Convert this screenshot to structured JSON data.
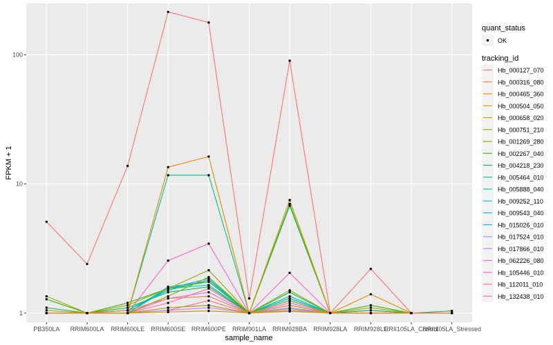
{
  "chart_data": {
    "type": "line",
    "xlabel": "sample_name",
    "ylabel": "FPKM + 1",
    "y_scale": "log10",
    "ylim": [
      0.85,
      250
    ],
    "yticks": [
      1,
      10,
      100
    ],
    "ytick_labels": [
      "1",
      "10",
      "100"
    ],
    "categories": [
      "PB350LA",
      "RRIM600LA",
      "RRIM600LE",
      "RRIM600SE",
      "RRIM600PE",
      "RRIM901LA",
      "RRIM928BA",
      "RRIM928LA",
      "RRIM928LE",
      "RRII105LA_Control",
      "RRII105LA_Stressed"
    ],
    "grid": true,
    "panel_background": "#EBEBEB",
    "point_color": "#000000",
    "legend_position": "right",
    "legends": [
      {
        "title": "quant_status",
        "entries": [
          "OK"
        ]
      },
      {
        "title": "tracking_id",
        "entries": [
          "Hb_000127_070",
          "Hb_000316_080",
          "Hb_000465_360",
          "Hb_000504_050",
          "Hb_000658_020",
          "Hb_000751_210",
          "Hb_001269_280",
          "Hb_002267_040",
          "Hb_004218_230",
          "Hb_005464_010",
          "Hb_005888_040",
          "Hb_009252_110",
          "Hb_009543_040",
          "Hb_015026_010",
          "Hb_017524_010",
          "Hb_017866_010",
          "Hb_062226_080",
          "Hb_105446_010",
          "Hb_112011_010",
          "Hb_132438_010"
        ]
      }
    ],
    "series": [
      {
        "name": "Hb_000127_070",
        "color": "#F8766D",
        "values": [
          5.1,
          2.4,
          13.8,
          215,
          178,
          1.3,
          90,
          1.0,
          2.2,
          1.0,
          1.0
        ]
      },
      {
        "name": "Hb_000316_080",
        "color": "#EE8044",
        "values": [
          1.0,
          1.0,
          1.05,
          1.3,
          1.35,
          1.0,
          1.15,
          1.0,
          1.0,
          1.0,
          1.0
        ]
      },
      {
        "name": "Hb_000465_360",
        "color": "#DE8C00",
        "values": [
          1.0,
          1.0,
          1.0,
          13.5,
          16.3,
          1.0,
          7.5,
          1.0,
          1.4,
          1.0,
          1.0
        ]
      },
      {
        "name": "Hb_000504_050",
        "color": "#CD9600",
        "values": [
          1.0,
          1.0,
          1.0,
          1.02,
          1.04,
          1.0,
          1.03,
          1.0,
          1.0,
          1.0,
          1.0
        ]
      },
      {
        "name": "Hb_000658_020",
        "color": "#B79F00",
        "values": [
          1.05,
          1.0,
          1.0,
          1.1,
          1.15,
          1.0,
          1.08,
          1.0,
          1.0,
          1.0,
          1.0
        ]
      },
      {
        "name": "Hb_000751_210",
        "color": "#9CA700",
        "values": [
          1.35,
          1.0,
          1.15,
          1.55,
          2.15,
          1.0,
          1.5,
          1.0,
          1.1,
          1.0,
          1.0
        ]
      },
      {
        "name": "Hb_001269_280",
        "color": "#7CAE00",
        "values": [
          1.0,
          1.0,
          1.0,
          1.35,
          1.9,
          1.0,
          1.25,
          1.0,
          1.0,
          1.0,
          1.0
        ]
      },
      {
        "name": "Hb_002267_040",
        "color": "#39B600",
        "values": [
          1.28,
          1.0,
          1.2,
          1.55,
          1.75,
          1.0,
          7.0,
          1.0,
          1.15,
          1.0,
          1.0
        ]
      },
      {
        "name": "Hb_004218_230",
        "color": "#00BB4E",
        "values": [
          1.1,
          1.0,
          1.1,
          1.45,
          1.6,
          1.0,
          1.45,
          1.0,
          1.05,
          1.0,
          1.04
        ]
      },
      {
        "name": "Hb_005464_010",
        "color": "#00BF7D",
        "values": [
          1.0,
          1.0,
          1.0,
          11.7,
          11.7,
          1.0,
          6.8,
          1.0,
          1.0,
          1.0,
          1.0
        ]
      },
      {
        "name": "Hb_005888_040",
        "color": "#00C1A3",
        "values": [
          1.0,
          1.0,
          1.05,
          1.5,
          1.8,
          1.0,
          1.35,
          1.0,
          1.0,
          1.0,
          1.0
        ]
      },
      {
        "name": "Hb_009252_110",
        "color": "#00BFC4",
        "values": [
          1.0,
          1.0,
          1.05,
          1.55,
          1.65,
          1.0,
          1.3,
          1.0,
          1.0,
          1.0,
          1.0
        ]
      },
      {
        "name": "Hb_009543_040",
        "color": "#00B8E7",
        "values": [
          1.0,
          1.0,
          1.0,
          1.6,
          1.75,
          1.0,
          1.25,
          1.0,
          1.0,
          1.0,
          1.0
        ]
      },
      {
        "name": "Hb_015026_010",
        "color": "#00A9FF",
        "values": [
          1.0,
          1.0,
          1.0,
          1.55,
          1.85,
          1.0,
          1.3,
          1.0,
          1.0,
          1.0,
          1.0
        ]
      },
      {
        "name": "Hb_017524_010",
        "color": "#8494FF",
        "values": [
          1.0,
          1.0,
          1.0,
          1.1,
          1.15,
          1.0,
          1.1,
          1.0,
          1.0,
          1.0,
          1.0
        ]
      },
      {
        "name": "Hb_017866_010",
        "color": "#C77CFF",
        "values": [
          1.0,
          1.0,
          1.0,
          1.05,
          1.1,
          1.0,
          1.05,
          1.0,
          1.0,
          1.0,
          1.0
        ]
      },
      {
        "name": "Hb_062226_080",
        "color": "#ED68ED",
        "values": [
          1.0,
          1.0,
          1.0,
          1.3,
          1.45,
          1.0,
          1.2,
          1.0,
          1.0,
          1.0,
          1.0
        ]
      },
      {
        "name": "Hb_105446_010",
        "color": "#FF61CC",
        "values": [
          1.0,
          1.0,
          1.0,
          2.55,
          3.45,
          1.0,
          2.05,
          1.0,
          1.05,
          1.0,
          1.0
        ]
      },
      {
        "name": "Hb_112011_010",
        "color": "#FF68A1",
        "values": [
          1.0,
          1.0,
          1.0,
          1.2,
          1.55,
          1.0,
          1.15,
          1.0,
          1.0,
          1.0,
          1.0
        ]
      },
      {
        "name": "Hb_132438_010",
        "color": "#FC717F",
        "values": [
          1.0,
          1.0,
          1.0,
          1.05,
          1.25,
          1.0,
          1.05,
          1.0,
          1.0,
          1.0,
          1.0
        ]
      }
    ]
  }
}
